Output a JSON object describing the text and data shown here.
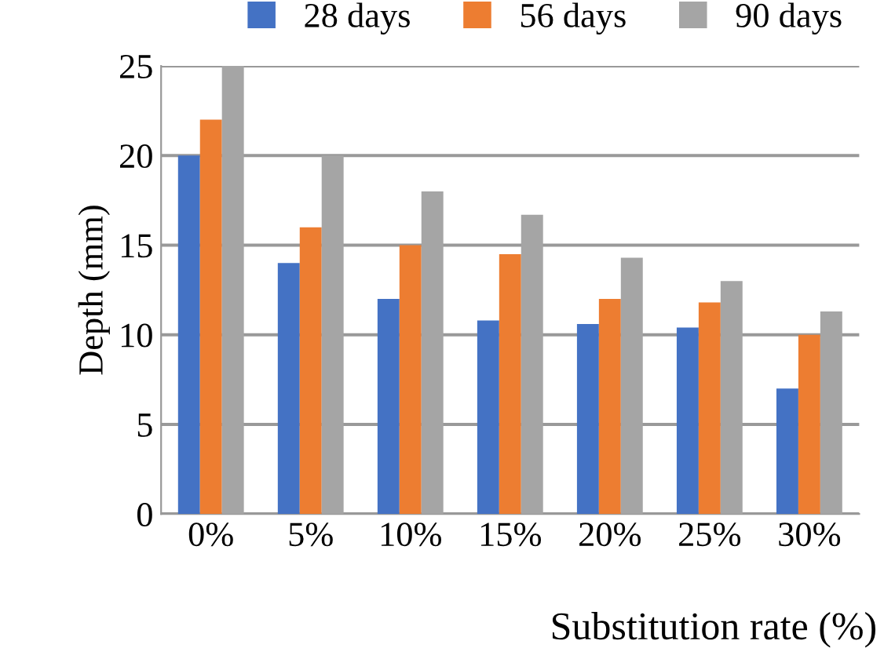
{
  "chart_data": {
    "type": "bar",
    "xlabel": "Substitution rate (%)",
    "ylabel": "Depth (mm)",
    "categories": [
      "0%",
      "5%",
      "10%",
      "15%",
      "20%",
      "25%",
      "30%"
    ],
    "series": [
      {
        "name": "28 days",
        "color": "#4472c4",
        "values": [
          20,
          14,
          12,
          10.8,
          10.6,
          10.4,
          7
        ]
      },
      {
        "name": "56 days",
        "color": "#ed7d31",
        "values": [
          22,
          16,
          15,
          14.5,
          12,
          11.8,
          10
        ]
      },
      {
        "name": "90 days",
        "color": "#a5a5a5",
        "values": [
          25,
          20,
          18,
          16.7,
          14.3,
          13,
          11.3
        ]
      }
    ],
    "ylim": [
      0,
      25
    ],
    "yticks": [
      0,
      5,
      10,
      15,
      20,
      25
    ],
    "grid": "y",
    "legend": "top"
  }
}
